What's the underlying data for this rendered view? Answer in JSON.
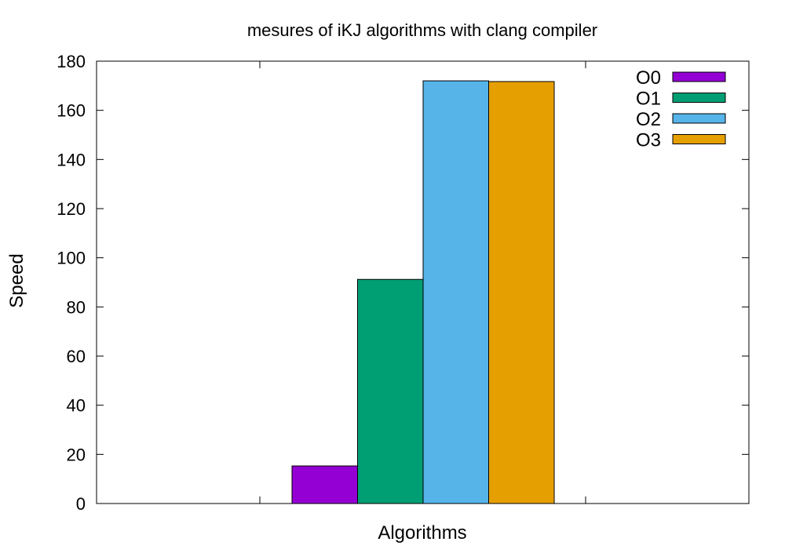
{
  "chart_data": {
    "type": "bar",
    "title": "mesures of iKJ algorithms with clang compiler",
    "xlabel": "Algorithms",
    "ylabel": "Speed",
    "ylim": [
      0,
      180
    ],
    "yticks": [
      "0",
      "20",
      "40",
      "60",
      "80",
      "100",
      "120",
      "140",
      "160",
      "180"
    ],
    "categories": [
      ""
    ],
    "grid": false,
    "legend_position": "top-right",
    "series": [
      {
        "name": "O0",
        "color": "#9400d3",
        "values": [
          15.3
        ]
      },
      {
        "name": "O1",
        "color": "#009e73",
        "values": [
          91.2
        ]
      },
      {
        "name": "O2",
        "color": "#56b4e9",
        "values": [
          172.0
        ]
      },
      {
        "name": "O3",
        "color": "#e69f00",
        "values": [
          171.7
        ]
      }
    ]
  }
}
